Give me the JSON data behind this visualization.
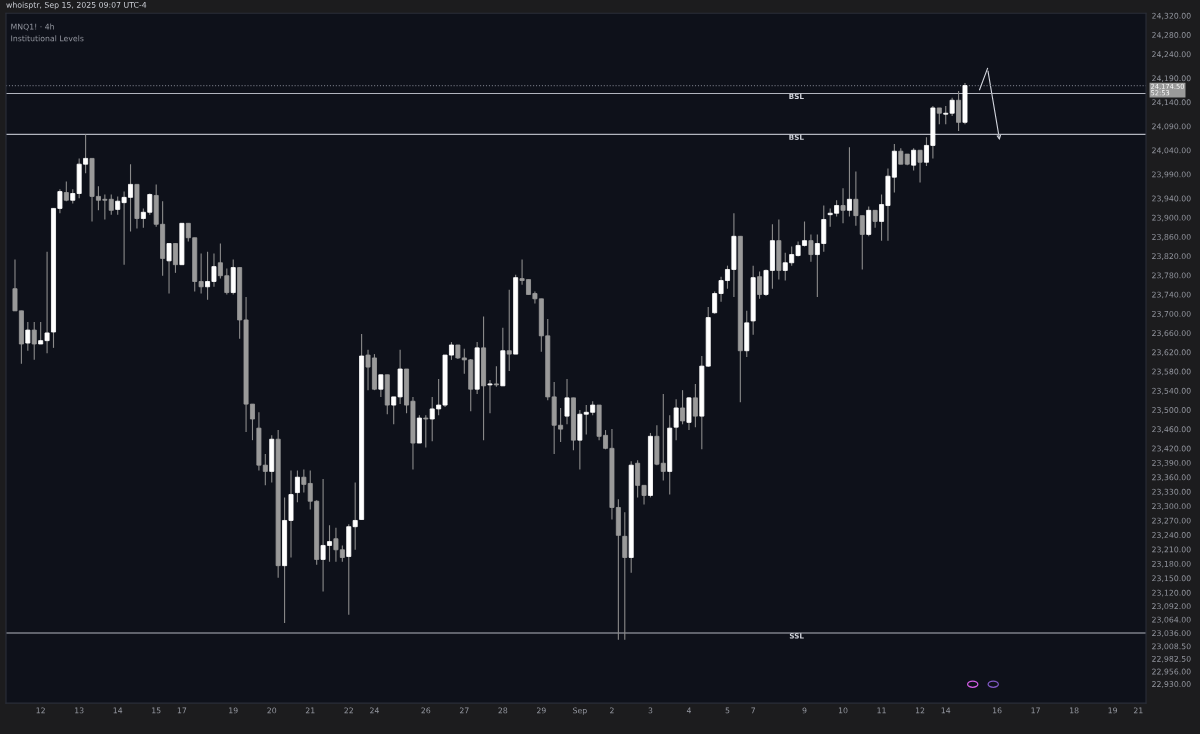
{
  "chart_data": {
    "type": "candlestick",
    "title": "MNQ1! · 4h",
    "subtitle": "Institutional Levels",
    "annotations": [
      "whoisptr, Sep 15, 2025 09:07 UTC-4"
    ],
    "categories": [
      null,
      null,
      null,
      null,
      "12",
      null,
      null,
      null,
      null,
      null,
      "13",
      null,
      null,
      null,
      null,
      null,
      "14",
      null,
      null,
      null,
      null,
      null,
      "15",
      null,
      null,
      null,
      "17",
      null,
      null,
      null,
      null,
      null,
      null,
      null,
      "19",
      null,
      null,
      null,
      null,
      null,
      "20",
      null,
      null,
      null,
      null,
      null,
      "21",
      null,
      null,
      null,
      null,
      null,
      "22",
      null,
      null,
      null,
      "24",
      null,
      null,
      null,
      null,
      null,
      null,
      null,
      "26",
      null,
      null,
      null,
      null,
      null,
      "27",
      null,
      null,
      null,
      null,
      null,
      "28",
      null,
      null,
      null,
      null,
      null,
      "29",
      null,
      null,
      null,
      null,
      null,
      "Sep",
      null,
      null,
      null,
      null,
      "2",
      null,
      null,
      null,
      null,
      null,
      "3",
      null,
      null,
      null,
      null,
      null,
      "4",
      null,
      null,
      null,
      null,
      null,
      "5",
      null,
      null,
      null,
      "7",
      null,
      null,
      null,
      null,
      null,
      null,
      null,
      "9",
      null,
      null,
      null,
      null,
      null,
      "10",
      null,
      null,
      null,
      null,
      null,
      "11",
      null,
      null,
      null,
      null,
      null,
      "12",
      null,
      null,
      null,
      "14",
      null,
      null,
      null,
      null,
      null,
      null,
      null,
      "16",
      null,
      null,
      null,
      null,
      null,
      "17",
      null,
      null,
      null,
      null,
      null,
      "18",
      null,
      null,
      null,
      null,
      null,
      "19",
      null,
      null,
      null,
      "21"
    ],
    "colors": [
      "#9a9a9a",
      "#9a9a9a",
      "#ffffff",
      "#9a9a9a",
      "#ffffff",
      "#ffffff",
      "#ffffff",
      "#ffffff",
      "#9a9a9a",
      "#ffffff",
      "#ffffff",
      "#ffffff",
      "#9a9a9a",
      "#9a9a9a",
      "#9a9a9a",
      "#9a9a9a",
      "#ffffff",
      "#ffffff",
      "#ffffff",
      "#9a9a9a",
      "#ffffff",
      "#ffffff",
      "#9a9a9a",
      "#9a9a9a",
      "#ffffff",
      "#9a9a9a",
      "#ffffff",
      "#9a9a9a",
      "#9a9a9a",
      "#9a9a9a",
      "#ffffff",
      "#ffffff",
      "#9a9a9a",
      "#9a9a9a",
      "#ffffff",
      "#9a9a9a",
      "#9a9a9a",
      "#9a9a9a",
      "#9a9a9a",
      "#9a9a9a",
      "#ffffff",
      "#9a9a9a",
      "#ffffff",
      "#ffffff",
      "#ffffff",
      "#9a9a9a",
      "#9a9a9a",
      "#9a9a9a",
      "#ffffff",
      "#ffffff",
      "#9a9a9a",
      "#9a9a9a",
      "#ffffff",
      "#ffffff",
      "#ffffff",
      "#9a9a9a",
      "#9a9a9a",
      "#ffffff",
      "#9a9a9a",
      "#ffffff",
      "#ffffff",
      "#9a9a9a",
      "#9a9a9a",
      "#ffffff",
      "#9a9a9a",
      "#ffffff",
      "#ffffff",
      "#ffffff",
      "#ffffff",
      "#9a9a9a",
      "#9a9a9a",
      "#9a9a9a",
      "#ffffff",
      "#9a9a9a",
      "#ffffff",
      "#9a9a9a",
      "#ffffff",
      "#9a9a9a",
      "#ffffff",
      "#9a9a9a",
      "#9a9a9a",
      "#9a9a9a",
      "#9a9a9a",
      "#9a9a9a",
      "#9a9a9a",
      "#9a9a9a",
      "#ffffff",
      "#9a9a9a",
      "#ffffff",
      "#ffffff",
      "#ffffff",
      "#9a9a9a",
      "#9a9a9a",
      "#9a9a9a",
      "#9a9a9a",
      "#9a9a9a",
      "#ffffff",
      "#9a9a9a",
      "#9a9a9a",
      "#ffffff",
      "#9a9a9a",
      "#9a9a9a",
      "#ffffff",
      "#ffffff",
      "#9a9a9a",
      "#ffffff",
      "#9a9a9a",
      "#ffffff",
      "#ffffff",
      "#ffffff",
      "#ffffff",
      "#ffffff",
      "#ffffff",
      "#9a9a9a",
      "#ffffff",
      "#ffffff",
      "#9a9a9a",
      "#ffffff",
      "#ffffff",
      "#9a9a9a",
      "#ffffff",
      "#ffffff",
      "#ffffff",
      "#ffffff",
      "#9a9a9a",
      "#ffffff",
      "#ffffff",
      "#ffffff",
      "#ffffff",
      "#9a9a9a",
      "#ffffff",
      "#9a9a9a",
      "#9a9a9a",
      "#ffffff",
      "#9a9a9a",
      "#ffffff",
      "#ffffff",
      "#ffffff",
      "#9a9a9a",
      "#9a9a9a",
      "#ffffff",
      "#9a9a9a",
      "#ffffff",
      "#ffffff",
      "#9a9a9a",
      "#ffffff",
      "#ffffff",
      "#9a9a9a",
      "#ffffff",
      null,
      null,
      null,
      null,
      null,
      null,
      null,
      null,
      null,
      null,
      null,
      null,
      null,
      null,
      null,
      null,
      null,
      null,
      null,
      null,
      null,
      null,
      null,
      null,
      null,
      null,
      null
    ],
    "ohlc": [
      [
        23752,
        23813,
        23706,
        23706
      ],
      [
        23706,
        23706,
        23596,
        23637
      ],
      [
        23639,
        23683,
        23623,
        23666
      ],
      [
        23666,
        23683,
        23604,
        23637
      ],
      [
        23637,
        23683,
        23637,
        23644
      ],
      [
        23644,
        23829,
        23618,
        23660
      ],
      [
        23662,
        23919,
        23629,
        23919
      ],
      [
        23919,
        23959,
        23909,
        23954
      ],
      [
        23952,
        23975,
        23934,
        23936
      ],
      [
        23936,
        23959,
        23929,
        23950
      ],
      [
        23950,
        24023,
        23940,
        24011
      ],
      [
        24011,
        24073,
        23992,
        24023
      ],
      [
        24023,
        24023,
        23892,
        23944
      ],
      [
        23944,
        23965,
        23915,
        23936
      ],
      [
        23938,
        23948,
        23896,
        23936
      ],
      [
        23938,
        23948,
        23906,
        23915
      ],
      [
        23917,
        23944,
        23906,
        23934
      ],
      [
        23931,
        23954,
        23802,
        23942
      ],
      [
        23942,
        24011,
        23871,
        23969
      ],
      [
        23969,
        23969,
        23877,
        23898
      ],
      [
        23898,
        23919,
        23879,
        23911
      ],
      [
        23911,
        23950,
        23906,
        23948
      ],
      [
        23946,
        23969,
        23881,
        23886
      ],
      [
        23886,
        23934,
        23779,
        23815
      ],
      [
        23810,
        23846,
        23742,
        23846
      ],
      [
        23846,
        23846,
        23785,
        23802
      ],
      [
        23802,
        23888,
        23802,
        23888
      ],
      [
        23888,
        23888,
        23850,
        23858
      ],
      [
        23858,
        23858,
        23746,
        23767
      ],
      [
        23767,
        23825,
        23742,
        23756
      ],
      [
        23756,
        23829,
        23729,
        23767
      ],
      [
        23767,
        23825,
        23756,
        23798
      ],
      [
        23806,
        23846,
        23773,
        23779
      ],
      [
        23779,
        23794,
        23740,
        23744
      ],
      [
        23744,
        23813,
        23740,
        23796
      ],
      [
        23796,
        23796,
        23648,
        23687
      ],
      [
        23687,
        23735,
        23454,
        23512
      ],
      [
        23512,
        23512,
        23437,
        23481
      ],
      [
        23462,
        23495,
        23374,
        23385
      ],
      [
        23385,
        23408,
        23343,
        23372
      ],
      [
        23372,
        23447,
        23349,
        23439
      ],
      [
        23439,
        23458,
        23151,
        23176
      ],
      [
        23176,
        23318,
        23057,
        23270
      ],
      [
        23270,
        23374,
        23193,
        23324
      ],
      [
        23328,
        23374,
        23308,
        23360
      ],
      [
        23360,
        23376,
        23328,
        23345
      ],
      [
        23347,
        23374,
        23293,
        23310
      ],
      [
        23310,
        23312,
        23178,
        23189
      ],
      [
        23189,
        23356,
        23122,
        23218
      ],
      [
        23218,
        23260,
        23184,
        23226
      ],
      [
        23232,
        23255,
        23184,
        23209
      ],
      [
        23209,
        23218,
        23184,
        23193
      ],
      [
        23195,
        23262,
        23074,
        23257
      ],
      [
        23257,
        23349,
        23209,
        23270
      ],
      [
        23272,
        23658,
        23272,
        23612
      ],
      [
        23614,
        23625,
        23541,
        23589
      ],
      [
        23608,
        23616,
        23541,
        23543
      ],
      [
        23543,
        23573,
        23527,
        23573
      ],
      [
        23573,
        23573,
        23491,
        23510
      ],
      [
        23510,
        23527,
        23470,
        23527
      ],
      [
        23527,
        23625,
        23512,
        23585
      ],
      [
        23585,
        23585,
        23493,
        23510
      ],
      [
        23518,
        23527,
        23376,
        23431
      ],
      [
        23431,
        23489,
        23431,
        23483
      ],
      [
        23483,
        23489,
        23422,
        23481
      ],
      [
        23481,
        23527,
        23435,
        23502
      ],
      [
        23502,
        23564,
        23489,
        23510
      ],
      [
        23510,
        23614,
        23506,
        23614
      ],
      [
        23614,
        23641,
        23604,
        23635
      ],
      [
        23635,
        23635,
        23606,
        23608
      ],
      [
        23608,
        23627,
        23575,
        23604
      ],
      [
        23604,
        23606,
        23497,
        23543
      ],
      [
        23543,
        23641,
        23533,
        23629
      ],
      [
        23629,
        23694,
        23437,
        23550
      ],
      [
        23552,
        23562,
        23493,
        23554
      ],
      [
        23554,
        23591,
        23548,
        23552
      ],
      [
        23550,
        23671,
        23550,
        23623
      ],
      [
        23623,
        23750,
        23581,
        23616
      ],
      [
        23616,
        23781,
        23616,
        23775
      ],
      [
        23773,
        23813,
        23760,
        23769
      ],
      [
        23771,
        23771,
        23740,
        23740
      ],
      [
        23742,
        23746,
        23721,
        23731
      ],
      [
        23731,
        23731,
        23621,
        23654
      ],
      [
        23654,
        23689,
        23520,
        23527
      ],
      [
        23527,
        23558,
        23408,
        23468
      ],
      [
        23468,
        23504,
        23433,
        23460
      ],
      [
        23487,
        23564,
        23470,
        23525
      ],
      [
        23525,
        23525,
        23416,
        23437
      ],
      [
        23437,
        23500,
        23376,
        23491
      ],
      [
        23491,
        23510,
        23449,
        23495
      ],
      [
        23495,
        23518,
        23489,
        23510
      ],
      [
        23510,
        23510,
        23437,
        23445
      ],
      [
        23447,
        23458,
        23418,
        23420
      ],
      [
        23420,
        23460,
        23272,
        23297
      ],
      [
        23297,
        23314,
        23022,
        23239
      ],
      [
        23237,
        23287,
        23022,
        23193
      ],
      [
        23193,
        23393,
        23161,
        23385
      ],
      [
        23389,
        23395,
        23318,
        23343
      ],
      [
        23343,
        23343,
        23303,
        23322
      ],
      [
        23322,
        23452,
        23318,
        23445
      ],
      [
        23445,
        23468,
        23385,
        23387
      ],
      [
        23389,
        23533,
        23353,
        23372
      ],
      [
        23372,
        23489,
        23324,
        23462
      ],
      [
        23464,
        23522,
        23437,
        23504
      ],
      [
        23504,
        23541,
        23470,
        23477
      ],
      [
        23474,
        23527,
        23458,
        23525
      ],
      [
        23525,
        23554,
        23464,
        23487
      ],
      [
        23487,
        23612,
        23418,
        23591
      ],
      [
        23591,
        23714,
        23589,
        23692
      ],
      [
        23702,
        23746,
        23700,
        23742
      ],
      [
        23742,
        23777,
        23725,
        23769
      ],
      [
        23769,
        23800,
        23752,
        23792
      ],
      [
        23792,
        23909,
        23735,
        23861
      ],
      [
        23861,
        23861,
        23516,
        23623
      ],
      [
        23623,
        23706,
        23610,
        23681
      ],
      [
        23685,
        23800,
        23656,
        23775
      ],
      [
        23777,
        23788,
        23731,
        23740
      ],
      [
        23740,
        23792,
        23737,
        23790
      ],
      [
        23790,
        23886,
        23752,
        23852
      ],
      [
        23852,
        23896,
        23771,
        23790
      ],
      [
        23790,
        23827,
        23769,
        23806
      ],
      [
        23806,
        23840,
        23800,
        23823
      ],
      [
        23821,
        23850,
        23819,
        23842
      ],
      [
        23842,
        23892,
        23840,
        23852
      ],
      [
        23852,
        23865,
        23808,
        23823
      ],
      [
        23823,
        23865,
        23735,
        23846
      ],
      [
        23846,
        23925,
        23829,
        23896
      ],
      [
        23906,
        23919,
        23881,
        23909
      ],
      [
        23909,
        23936,
        23902,
        23925
      ],
      [
        23925,
        23961,
        23888,
        23915
      ],
      [
        23915,
        24046,
        23902,
        23938
      ],
      [
        23938,
        23996,
        23883,
        23904
      ],
      [
        23904,
        23904,
        23792,
        23865
      ],
      [
        23865,
        23923,
        23861,
        23915
      ],
      [
        23915,
        23915,
        23879,
        23892
      ],
      [
        23892,
        23948,
        23852,
        23927
      ],
      [
        23925,
        24002,
        23852,
        23986
      ],
      [
        23984,
        24053,
        23952,
        24038
      ],
      [
        24038,
        24044,
        24011,
        24011
      ],
      [
        24032,
        24032,
        24009,
        24011
      ],
      [
        24009,
        24044,
        23998,
        24040
      ],
      [
        24040,
        24040,
        23973,
        24015
      ],
      [
        24015,
        24067,
        24007,
        24050
      ],
      [
        24050,
        24132,
        24023,
        24128
      ],
      [
        24128,
        24128,
        24094,
        24117
      ],
      [
        24115,
        24132,
        24094,
        24117
      ],
      [
        24117,
        24149,
        24111,
        24144
      ],
      [
        24144,
        24163,
        24080,
        24098
      ],
      [
        24098,
        24180,
        24094,
        24174.5
      ],
      null,
      null,
      null,
      null,
      null,
      null,
      null,
      null,
      null,
      null,
      null,
      null,
      null,
      null,
      null,
      null,
      null,
      null,
      null,
      null,
      null,
      null,
      null,
      null,
      null,
      null,
      null
    ],
    "ylim": [
      22890,
      24325
    ],
    "yticks": [
      {
        "value": 24320,
        "label": "24,320.00"
      },
      {
        "value": 24280,
        "label": "24,280.00"
      },
      {
        "value": 24240,
        "label": "24,240.00"
      },
      {
        "value": 24190,
        "label": "24,190.00"
      },
      {
        "value": 24140,
        "label": "24,140.00"
      },
      {
        "value": 24090,
        "label": "24,090.00"
      },
      {
        "value": 24040,
        "label": "24,040.00"
      },
      {
        "value": 23990,
        "label": "23,990.00"
      },
      {
        "value": 23940,
        "label": "23,940.00"
      },
      {
        "value": 23900,
        "label": "23,900.00"
      },
      {
        "value": 23860,
        "label": "23,860.00"
      },
      {
        "value": 23820,
        "label": "23,820.00"
      },
      {
        "value": 23780,
        "label": "23,780.00"
      },
      {
        "value": 23740,
        "label": "23,740.00"
      },
      {
        "value": 23700,
        "label": "23,700.00"
      },
      {
        "value": 23660,
        "label": "23,660.00"
      },
      {
        "value": 23620,
        "label": "23,620.00"
      },
      {
        "value": 23580,
        "label": "23,580.00"
      },
      {
        "value": 23540,
        "label": "23,540.00"
      },
      {
        "value": 23500,
        "label": "23,500.00"
      },
      {
        "value": 23460,
        "label": "23,460.00"
      },
      {
        "value": 23420,
        "label": "23,420.00"
      },
      {
        "value": 23390,
        "label": "23,390.00"
      },
      {
        "value": 23360,
        "label": "23,360.00"
      },
      {
        "value": 23330,
        "label": "23,330.00"
      },
      {
        "value": 23300,
        "label": "23,300.00"
      },
      {
        "value": 23270,
        "label": "23,270.00"
      },
      {
        "value": 23240,
        "label": "23,240.00"
      },
      {
        "value": 23210,
        "label": "23,210.00"
      },
      {
        "value": 23180,
        "label": "23,180.00"
      },
      {
        "value": 23150,
        "label": "23,150.00"
      },
      {
        "value": 23120,
        "label": "23,120.00"
      },
      {
        "value": 23092,
        "label": "23,092.00"
      },
      {
        "value": 23064,
        "label": "23,064.00"
      },
      {
        "value": 23036,
        "label": "23,036.00"
      },
      {
        "value": 23008.5,
        "label": "23,008.50"
      },
      {
        "value": 22982.5,
        "label": "22,982.50"
      },
      {
        "value": 22956,
        "label": "22,956.00"
      },
      {
        "value": 22930,
        "label": "22,930.00"
      }
    ],
    "ref_lines": [
      {
        "axis": "y",
        "value": 24073,
        "label": "BSL",
        "color": "#b2b5be"
      },
      {
        "axis": "y",
        "value": 24158,
        "label": "BSL",
        "color": "#b2b5be"
      },
      {
        "axis": "y",
        "value": 23036,
        "label": "SSL",
        "color": "#b2b5be"
      },
      {
        "axis": "y",
        "value": 24174.5,
        "label": "24,174.50\n52:53",
        "color": "#6a6d78",
        "line_style": "dotted"
      }
    ],
    "grid": false,
    "legend": false
  }
}
